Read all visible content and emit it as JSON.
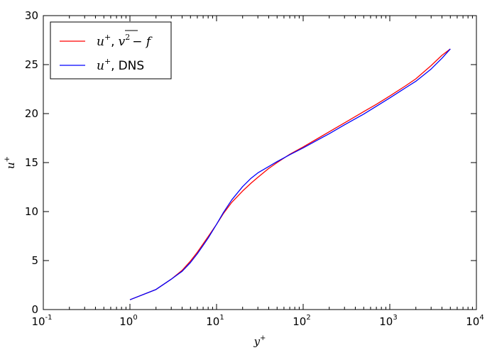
{
  "chart_data": {
    "type": "line",
    "xscale": "log",
    "xlim": [
      0.1,
      10000
    ],
    "ylim": [
      0,
      30
    ],
    "x_ticks": [
      {
        "value": 0.1,
        "base": "10",
        "exp": "-1"
      },
      {
        "value": 1,
        "base": "10",
        "exp": "0"
      },
      {
        "value": 10,
        "base": "10",
        "exp": "1"
      },
      {
        "value": 100,
        "base": "10",
        "exp": "2"
      },
      {
        "value": 1000,
        "base": "10",
        "exp": "3"
      },
      {
        "value": 10000,
        "base": "10",
        "exp": "4"
      }
    ],
    "y_ticks": [
      0,
      5,
      10,
      15,
      20,
      25,
      30
    ],
    "xlabel": {
      "base": "y",
      "sup": "+"
    },
    "ylabel": {
      "base": "u",
      "sup": "+"
    },
    "legend_position": "top-left",
    "series": [
      {
        "name": "u+, v2 - f",
        "legend": {
          "var": "u",
          "sup": "+",
          "sep": ",",
          "expr_base": "v",
          "expr_sup": "2",
          "expr_rest": "− f"
        },
        "color": "#ff0000",
        "x": [
          1,
          2,
          3,
          4,
          5,
          6,
          7,
          8,
          10,
          12,
          15,
          20,
          25,
          30,
          40,
          50,
          70,
          100,
          150,
          200,
          300,
          500,
          700,
          1000,
          1500,
          2000,
          3000,
          4000,
          5000
        ],
        "y": [
          1.0,
          2.05,
          3.1,
          4.0,
          4.95,
          5.85,
          6.7,
          7.45,
          8.7,
          9.8,
          10.95,
          12.1,
          12.9,
          13.5,
          14.4,
          15.0,
          15.85,
          16.6,
          17.5,
          18.15,
          19.05,
          20.2,
          20.95,
          21.8,
          22.8,
          23.55,
          24.9,
          25.95,
          26.6
        ]
      },
      {
        "name": "u+, DNS",
        "legend": {
          "var": "u",
          "sup": "+",
          "sep": ",",
          "text": "DNS"
        },
        "color": "#0000ff",
        "x": [
          1,
          2,
          3,
          4,
          5,
          6,
          7,
          8,
          10,
          12,
          15,
          20,
          25,
          30,
          40,
          50,
          70,
          100,
          150,
          200,
          300,
          500,
          700,
          1000,
          1500,
          2000,
          3000,
          4000,
          5000
        ],
        "y": [
          1.0,
          2.05,
          3.1,
          3.9,
          4.8,
          5.7,
          6.55,
          7.3,
          8.7,
          9.9,
          11.2,
          12.55,
          13.4,
          13.95,
          14.6,
          15.1,
          15.8,
          16.5,
          17.35,
          17.95,
          18.85,
          19.95,
          20.75,
          21.6,
          22.6,
          23.3,
          24.55,
          25.65,
          26.6
        ]
      }
    ]
  }
}
